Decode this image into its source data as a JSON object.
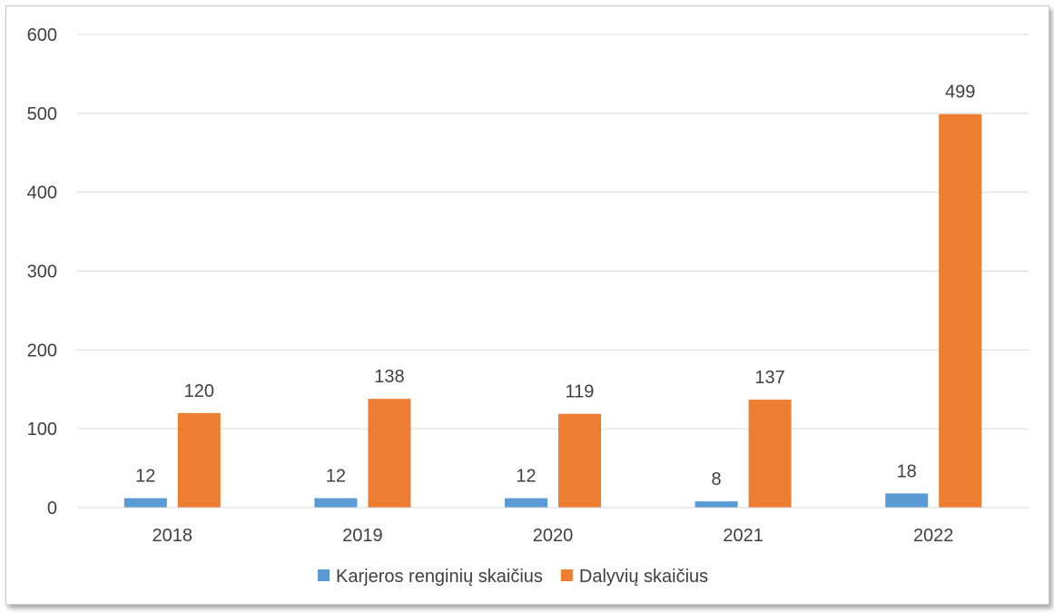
{
  "chart_data": {
    "type": "bar",
    "categories": [
      "2018",
      "2019",
      "2020",
      "2021",
      "2022"
    ],
    "series": [
      {
        "name": "Karjeros renginių skaičius",
        "color": "#5b9bd5",
        "values": [
          12,
          12,
          12,
          8,
          18
        ]
      },
      {
        "name": "Dalyvių skaičius",
        "color": "#ed7d31",
        "values": [
          120,
          138,
          119,
          137,
          499
        ]
      }
    ],
    "yticks": [
      "0",
      "100",
      "200",
      "300",
      "400",
      "500",
      "600"
    ],
    "ylim": [
      0,
      600
    ],
    "grid": true,
    "legend": "bottom"
  }
}
